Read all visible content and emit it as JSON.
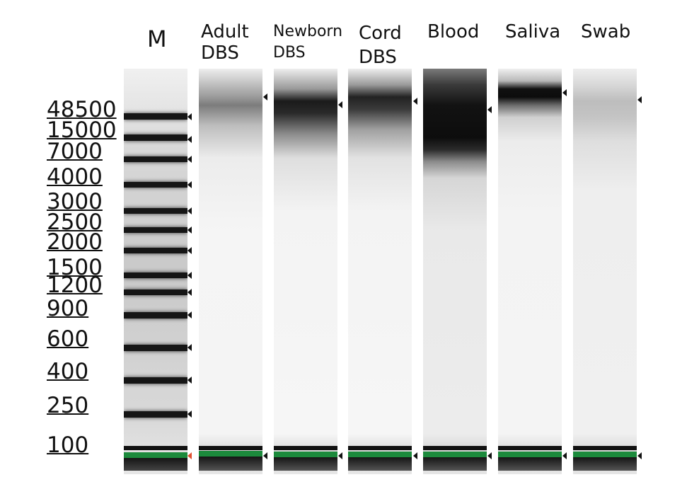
{
  "lanes": [
    {
      "label": "M"
    },
    {
      "label": "Adult\nDBS"
    },
    {
      "label": "Newborn\nDBS"
    },
    {
      "label": "Cord\nDBS"
    },
    {
      "label": "Blood"
    },
    {
      "label": "Saliva"
    },
    {
      "label": "Swab"
    }
  ],
  "size_markers": [
    "48500",
    "15000",
    "7000",
    "4000",
    "3000",
    "2500",
    "2000",
    "1500",
    "1200",
    "900",
    "600",
    "400",
    "250",
    "100"
  ],
  "colors": {
    "lower_marker": "#1c8a3c",
    "lower_marker_arrow": "#e05030",
    "band": "#111111"
  }
}
